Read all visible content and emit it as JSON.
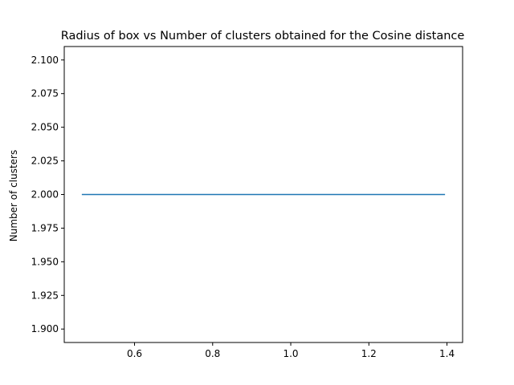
{
  "chart_data": {
    "type": "line",
    "title": "Radius of box vs Number of clusters obtained for the Cosine distance",
    "xlabel": "",
    "ylabel": "Number of clusters",
    "xlim": [
      0.42,
      1.44
    ],
    "ylim": [
      1.89,
      2.11
    ],
    "x_ticks": [
      0.6,
      0.8,
      1.0,
      1.2,
      1.4
    ],
    "x_tick_labels": [
      "0.6",
      "0.8",
      "1.0",
      "1.2",
      "1.4"
    ],
    "y_ticks": [
      1.9,
      1.925,
      1.95,
      1.975,
      2.0,
      2.025,
      2.05,
      2.075,
      2.1
    ],
    "y_tick_labels": [
      "1.900",
      "1.925",
      "1.950",
      "1.975",
      "2.000",
      "2.025",
      "2.050",
      "2.075",
      "2.100"
    ],
    "grid": false,
    "series": [
      {
        "color": "#1f77b4",
        "x": [
          0.465,
          1.395
        ],
        "y": [
          2.0,
          2.0
        ]
      }
    ]
  }
}
